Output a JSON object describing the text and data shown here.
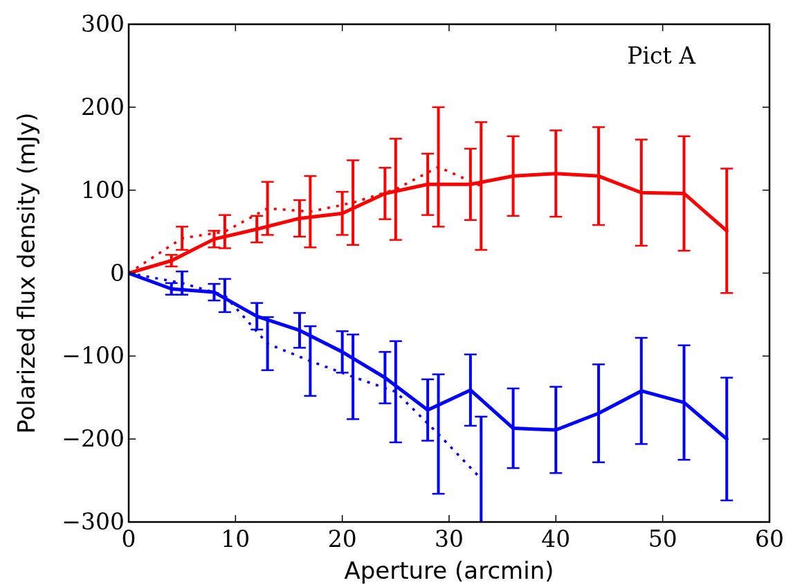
{
  "chart_data": {
    "type": "line",
    "xlabel": "Aperture (arcmin)",
    "ylabel": "Polarized flux density (mJy)",
    "annotations": [
      "Pict A"
    ],
    "xlim": [
      0,
      60
    ],
    "xticks": [
      0,
      10,
      20,
      30,
      40,
      50,
      60
    ],
    "ylim": [
      -300,
      300
    ],
    "yticks": [
      -300,
      -200,
      -100,
      0,
      100,
      200,
      300
    ],
    "grid": false,
    "marker": "none",
    "series": [
      {
        "color": "#ff0000",
        "line_style": "solid",
        "x": [
          0,
          4,
          8,
          12,
          16,
          20,
          24,
          28,
          32,
          36,
          40,
          44,
          48,
          52,
          56
        ],
        "values": [
          0,
          15,
          41,
          53,
          66,
          72,
          96,
          107,
          107,
          117,
          120,
          117,
          97,
          96,
          51
        ],
        "errors": [
          null,
          7,
          10,
          16,
          22,
          26,
          31,
          37,
          43,
          48,
          52,
          59,
          64,
          69,
          75
        ]
      },
      {
        "color": "#ff0000",
        "line_style": "dotted",
        "x": [
          0,
          5,
          9,
          13,
          17,
          21,
          25,
          29,
          33
        ],
        "values": [
          0,
          42,
          50,
          78,
          74,
          85,
          101,
          128,
          105
        ],
        "errors": [
          null,
          14,
          20,
          32,
          43,
          51,
          61,
          72,
          77
        ]
      },
      {
        "color": "#0000ff",
        "line_style": "solid",
        "x": [
          0,
          4,
          8,
          12,
          16,
          20,
          24,
          28,
          32,
          36,
          40,
          44,
          48,
          52,
          56
        ],
        "values": [
          0,
          -19,
          -23,
          -52,
          -69,
          -95,
          -126,
          -165,
          -141,
          -187,
          -189,
          -169,
          -142,
          -156,
          -200
        ],
        "errors": [
          null,
          7,
          10,
          16,
          21,
          25,
          31,
          37,
          43,
          48,
          52,
          59,
          64,
          69,
          74
        ]
      },
      {
        "color": "#0000ff",
        "line_style": "dotted",
        "x": [
          0,
          5,
          9,
          13,
          17,
          21,
          25,
          29,
          33
        ],
        "values": [
          0,
          -12,
          -27,
          -85,
          -106,
          -125,
          -143,
          -194,
          -248
        ],
        "errors": [
          null,
          14,
          20,
          32,
          42,
          51,
          61,
          72,
          75
        ]
      }
    ]
  }
}
